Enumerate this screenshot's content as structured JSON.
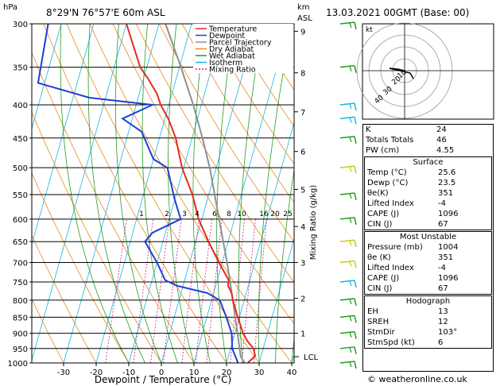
{
  "header": {
    "pressure_unit": "hPa",
    "location": "8°29'N 76°57'E 60m ASL",
    "km_label": "km",
    "asl_label": "ASL",
    "datetime": "13.03.2021 00GMT (Base: 00)"
  },
  "copyright": "© weatheronline.co.uk",
  "chart_data": {
    "type": "skew-t log-p",
    "xlabel": "Dewpoint / Temperature (°C)",
    "ylabel_right": "Mixing Ratio (g/kg)",
    "pressure_levels": [
      300,
      350,
      400,
      450,
      500,
      550,
      600,
      650,
      700,
      750,
      800,
      850,
      900,
      950,
      1000
    ],
    "temperature_ticks": [
      -30,
      -20,
      -10,
      0,
      10,
      20,
      30,
      40
    ],
    "km_ticks": [
      {
        "km": "9",
        "p": 308
      },
      {
        "km": "8",
        "p": 357
      },
      {
        "km": "7",
        "p": 410
      },
      {
        "km": "6",
        "p": 472
      },
      {
        "km": "5",
        "p": 540
      },
      {
        "km": "4",
        "p": 616
      },
      {
        "km": "3",
        "p": 700
      },
      {
        "km": "2",
        "p": 795
      },
      {
        "km": "1",
        "p": 900
      }
    ],
    "lcl": {
      "label": "LCL",
      "p": 978
    },
    "mixing_ratio_labels": [
      "1",
      "2",
      "3",
      "4",
      "6",
      "8",
      "10",
      "16",
      "20",
      "25"
    ],
    "mixing_ratio_values": [
      1,
      2,
      3,
      4,
      6,
      8,
      10,
      16,
      20,
      25
    ],
    "legend": [
      {
        "name": "Temperature",
        "color": "#e8291c"
      },
      {
        "name": "Dewpoint",
        "color": "#1e3ed8"
      },
      {
        "name": "Parcel Trajectory",
        "color": "#909090"
      },
      {
        "name": "Dry Adiabat",
        "color": "#e88a1c"
      },
      {
        "name": "Wet Adiabat",
        "color": "#1ea01e"
      },
      {
        "name": "Isotherm",
        "color": "#19b6e0"
      },
      {
        "name": "Mixing Ratio",
        "color": "#d01a8a"
      }
    ],
    "temperature_profile": [
      {
        "p": 1000,
        "t": 26.5
      },
      {
        "p": 975,
        "t": 28.2
      },
      {
        "p": 950,
        "t": 27.0
      },
      {
        "p": 925,
        "t": 24.5
      },
      {
        "p": 900,
        "t": 22.5
      },
      {
        "p": 850,
        "t": 19.5
      },
      {
        "p": 800,
        "t": 16.5
      },
      {
        "p": 780,
        "t": 15.5
      },
      {
        "p": 760,
        "t": 13.8
      },
      {
        "p": 745,
        "t": 13.5
      },
      {
        "p": 700,
        "t": 9.0
      },
      {
        "p": 650,
        "t": 4.0
      },
      {
        "p": 600,
        "t": -1.0
      },
      {
        "p": 550,
        "t": -5.0
      },
      {
        "p": 500,
        "t": -10.5
      },
      {
        "p": 450,
        "t": -15.0
      },
      {
        "p": 420,
        "t": -19.0
      },
      {
        "p": 400,
        "t": -22.5
      },
      {
        "p": 385,
        "t": -24.5
      },
      {
        "p": 365,
        "t": -28.5
      },
      {
        "p": 350,
        "t": -32.0
      },
      {
        "p": 300,
        "t": -40.0
      }
    ],
    "dewpoint_profile": [
      {
        "p": 1000,
        "t": 23.5
      },
      {
        "p": 950,
        "t": 20.5
      },
      {
        "p": 900,
        "t": 19.0
      },
      {
        "p": 850,
        "t": 16.0
      },
      {
        "p": 800,
        "t": 12.5
      },
      {
        "p": 780,
        "t": 8.0
      },
      {
        "p": 760,
        "t": -2.0
      },
      {
        "p": 745,
        "t": -6.0
      },
      {
        "p": 700,
        "t": -10.0
      },
      {
        "p": 650,
        "t": -15.5
      },
      {
        "p": 630,
        "t": -14.0
      },
      {
        "p": 600,
        "t": -6.5
      },
      {
        "p": 560,
        "t": -10.0
      },
      {
        "p": 500,
        "t": -15.0
      },
      {
        "p": 485,
        "t": -20.0
      },
      {
        "p": 440,
        "t": -26.0
      },
      {
        "p": 420,
        "t": -33.0
      },
      {
        "p": 400,
        "t": -25.0
      },
      {
        "p": 390,
        "t": -45.0
      },
      {
        "p": 370,
        "t": -62.0
      },
      {
        "p": 300,
        "t": -64.0
      }
    ],
    "parcel_profile": [
      {
        "p": 1000,
        "t": 25.6
      },
      {
        "p": 978,
        "t": 23.8
      },
      {
        "p": 900,
        "t": 20.8
      },
      {
        "p": 850,
        "t": 18.7
      },
      {
        "p": 800,
        "t": 16.5
      },
      {
        "p": 700,
        "t": 11.5
      },
      {
        "p": 600,
        "t": 5.3
      },
      {
        "p": 500,
        "t": -2.0
      },
      {
        "p": 450,
        "t": -6.8
      },
      {
        "p": 400,
        "t": -12.5
      },
      {
        "p": 350,
        "t": -19.5
      },
      {
        "p": 300,
        "t": -28.0
      }
    ],
    "wind_barbs": [
      {
        "p": 300,
        "color": "#1ea01e"
      },
      {
        "p": 350,
        "color": "#1ea01e"
      },
      {
        "p": 400,
        "color": "#19b6e0"
      },
      {
        "p": 420,
        "color": "#19b6e0"
      },
      {
        "p": 450,
        "color": "#1ea01e"
      },
      {
        "p": 500,
        "color": "#c8c81e"
      },
      {
        "p": 550,
        "color": "#1ea01e"
      },
      {
        "p": 600,
        "color": "#1ea01e"
      },
      {
        "p": 650,
        "color": "#c8c81e"
      },
      {
        "p": 700,
        "color": "#c8c81e"
      },
      {
        "p": 750,
        "color": "#19b6e0"
      },
      {
        "p": 800,
        "color": "#1ea01e"
      },
      {
        "p": 850,
        "color": "#1ea01e"
      },
      {
        "p": 900,
        "color": "#1ea01e"
      },
      {
        "p": 950,
        "color": "#1ea01e"
      },
      {
        "p": 1000,
        "color": "#1ea01e"
      }
    ],
    "hodograph": {
      "unit_label": "kt",
      "ring_labels": [
        "40",
        "30",
        "20",
        "10"
      ]
    }
  },
  "indices": {
    "rows": [
      {
        "label": "K",
        "value": "24"
      },
      {
        "label": "Totals Totals",
        "value": "46"
      },
      {
        "label": "PW (cm)",
        "value": "4.55"
      }
    ],
    "surface": {
      "title": "Surface",
      "rows": [
        {
          "label": "Temp (°C)",
          "value": "25.6"
        },
        {
          "label": "Dewp (°C)",
          "value": "23.5"
        },
        {
          "label": "θe(K)",
          "value": "351"
        },
        {
          "label": "Lifted Index",
          "value": "-4"
        },
        {
          "label": "CAPE (J)",
          "value": "1096"
        },
        {
          "label": "CIN (J)",
          "value": "67"
        }
      ]
    },
    "most_unstable": {
      "title": "Most Unstable",
      "rows": [
        {
          "label": "Pressure (mb)",
          "value": "1004"
        },
        {
          "label": "θe (K)",
          "value": "351"
        },
        {
          "label": "Lifted Index",
          "value": "-4"
        },
        {
          "label": "CAPE (J)",
          "value": "1096"
        },
        {
          "label": "CIN (J)",
          "value": "67"
        }
      ]
    },
    "hodograph": {
      "title": "Hodograph",
      "rows": [
        {
          "label": "EH",
          "value": "13"
        },
        {
          "label": "SREH",
          "value": "12"
        },
        {
          "label": "StmDir",
          "value": "103°"
        },
        {
          "label": "StmSpd (kt)",
          "value": "6"
        }
      ]
    }
  }
}
